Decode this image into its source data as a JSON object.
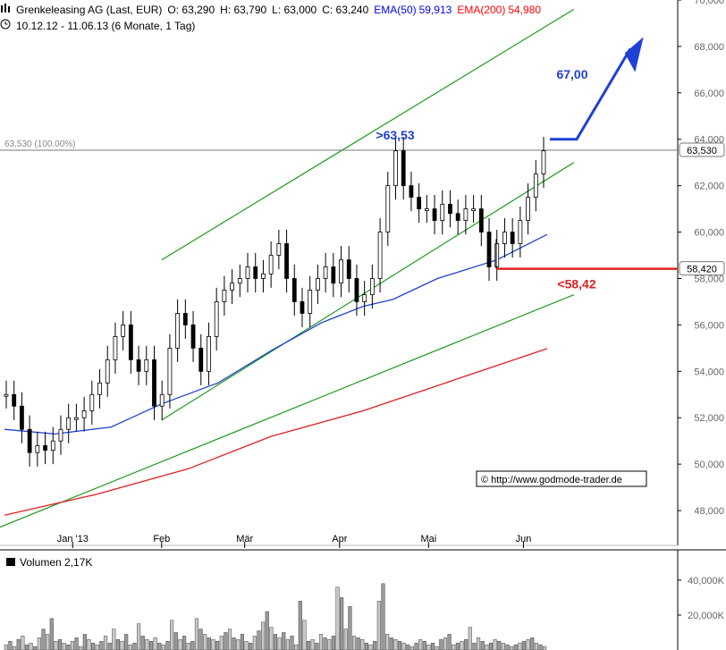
{
  "header": {
    "title": "Grenkeleasing AG (Last, EUR)",
    "open": "O: 63,290",
    "high": "H: 63,790",
    "low": "L: 63,000",
    "close": "C: 63,240",
    "ema50_label": "EMA(50)",
    "ema50_value": "59,913",
    "ema200_label": "EMA(200)",
    "ema200_value": "54,980",
    "range": "10.12.12 - 11.06.13 (6 Monate, 1 Tag)"
  },
  "colors": {
    "ema50": "#1f3fd6",
    "ema200": "#e02020",
    "channel": "#1e9a1e",
    "candle": "#000000",
    "hline": "#7a7a7a",
    "annot_blue": "#1f3fd6",
    "annot_red": "#e02020"
  },
  "chart_data": {
    "type": "line",
    "xlabel": "",
    "ylabel": "",
    "ylim": [
      46.5,
      70
    ],
    "y_ticks": [
      "48,000",
      "50,000",
      "52,000",
      "54,000",
      "56,000",
      "58,000",
      "60,000",
      "62,000",
      "64,000",
      "66,000",
      "68,000",
      "70,000"
    ],
    "x_ticks": [
      "Jan '13",
      "Feb",
      "Mär",
      "Apr",
      "Mai",
      "Jun"
    ],
    "x_tick_dates": [
      "2013-01-02",
      "2013-02-01",
      "2013-03-01",
      "2013-04-02",
      "2013-05-02",
      "2013-06-03"
    ],
    "start_date": "2012-12-10",
    "end_date": "2013-06-11",
    "series": [
      {
        "name": "EMA(50)",
        "x": [
          "2012-12-10",
          "2012-12-27",
          "2013-01-15",
          "2013-02-01",
          "2013-02-20",
          "2013-03-10",
          "2013-03-27",
          "2013-04-10",
          "2013-04-20",
          "2013-05-05",
          "2013-05-25",
          "2013-06-11"
        ],
        "values": [
          51.5,
          51.3,
          51.6,
          52.6,
          53.5,
          54.9,
          56.1,
          56.8,
          57.1,
          58.0,
          58.8,
          59.9
        ]
      },
      {
        "name": "EMA(200)",
        "x": [
          "2012-12-10",
          "2013-01-10",
          "2013-02-10",
          "2013-03-10",
          "2013-04-10",
          "2013-05-10",
          "2013-06-11"
        ],
        "values": [
          47.8,
          48.7,
          49.8,
          51.2,
          52.3,
          53.6,
          54.98
        ]
      }
    ],
    "ohlc_close": [
      53,
      52.5,
      51.5,
      50.5,
      50.8,
      50.6,
      51,
      51.5,
      52,
      52,
      52.3,
      53,
      53.5,
      54.5,
      55.5,
      56,
      54.5,
      54,
      54.5,
      52.5,
      53,
      55,
      56.5,
      56,
      55,
      54,
      55.5,
      57,
      57.5,
      57.8,
      58,
      58.5,
      58,
      58.2,
      59,
      59.5,
      58,
      57,
      56.5,
      57.5,
      58,
      58.5,
      57.8,
      58.8,
      58,
      57,
      57.3,
      58,
      60,
      62,
      63.5,
      62,
      61.5,
      61,
      61,
      60.5,
      61.2,
      60.8,
      60.5,
      61,
      61,
      60,
      58.5,
      59.5,
      60,
      59.5,
      60.5,
      61.5,
      62.5,
      63.5
    ],
    "channels": [
      {
        "from": [
          "2013-02-01",
          58.8
        ],
        "to": [
          "2013-06-20",
          69.6
        ]
      },
      {
        "from": [
          "2013-02-01",
          51.9
        ],
        "to": [
          "2013-06-20",
          63
        ]
      },
      {
        "from": [
          "2012-12-01",
          46.9
        ],
        "to": [
          "2013-06-20",
          57.3
        ]
      }
    ],
    "annotations": [
      {
        "text": ">63,53",
        "value": 63.53
      },
      {
        "text": "<58,42",
        "value": 58.42
      },
      {
        "text": "67,00",
        "value": 67.0
      }
    ],
    "levels": [
      {
        "label": "63,530 (100.00%)",
        "tag": "63,530",
        "value": 63.53
      },
      {
        "tag": "58,420",
        "value": 58.42
      }
    ]
  },
  "volume": {
    "title": "Volumen",
    "value": "2,17K",
    "y_ticks": [
      "20,000K",
      "40,000K"
    ],
    "bars": [
      3,
      5,
      2,
      6,
      8,
      3,
      4,
      2,
      7,
      12,
      9,
      18,
      5,
      6,
      4,
      3,
      5,
      7,
      2,
      9,
      6,
      4,
      3,
      5,
      8,
      4,
      12,
      6,
      5,
      9,
      3,
      4,
      15,
      8,
      6,
      5,
      7,
      4,
      3,
      5,
      17,
      10,
      6,
      8,
      4,
      5,
      18,
      12,
      9,
      7,
      6,
      5,
      8,
      10,
      12,
      7,
      6,
      9,
      5,
      4,
      8,
      11,
      16,
      22,
      13,
      9,
      7,
      10,
      6,
      8,
      3,
      28,
      17,
      5,
      6,
      4,
      9,
      7,
      6,
      8,
      36,
      30,
      12,
      25,
      8,
      7,
      6,
      4,
      3,
      5,
      28,
      38,
      9,
      7,
      6,
      5,
      4,
      3,
      2,
      4,
      6,
      5,
      3,
      4,
      2,
      6,
      7,
      9,
      3,
      4,
      5,
      6,
      13,
      4,
      7,
      5,
      3,
      4,
      6,
      5,
      4,
      3,
      2,
      3,
      4,
      5,
      6,
      7,
      4,
      3,
      2
    ]
  },
  "watermark": {
    "text": "http://www.godmode-trader.de"
  }
}
